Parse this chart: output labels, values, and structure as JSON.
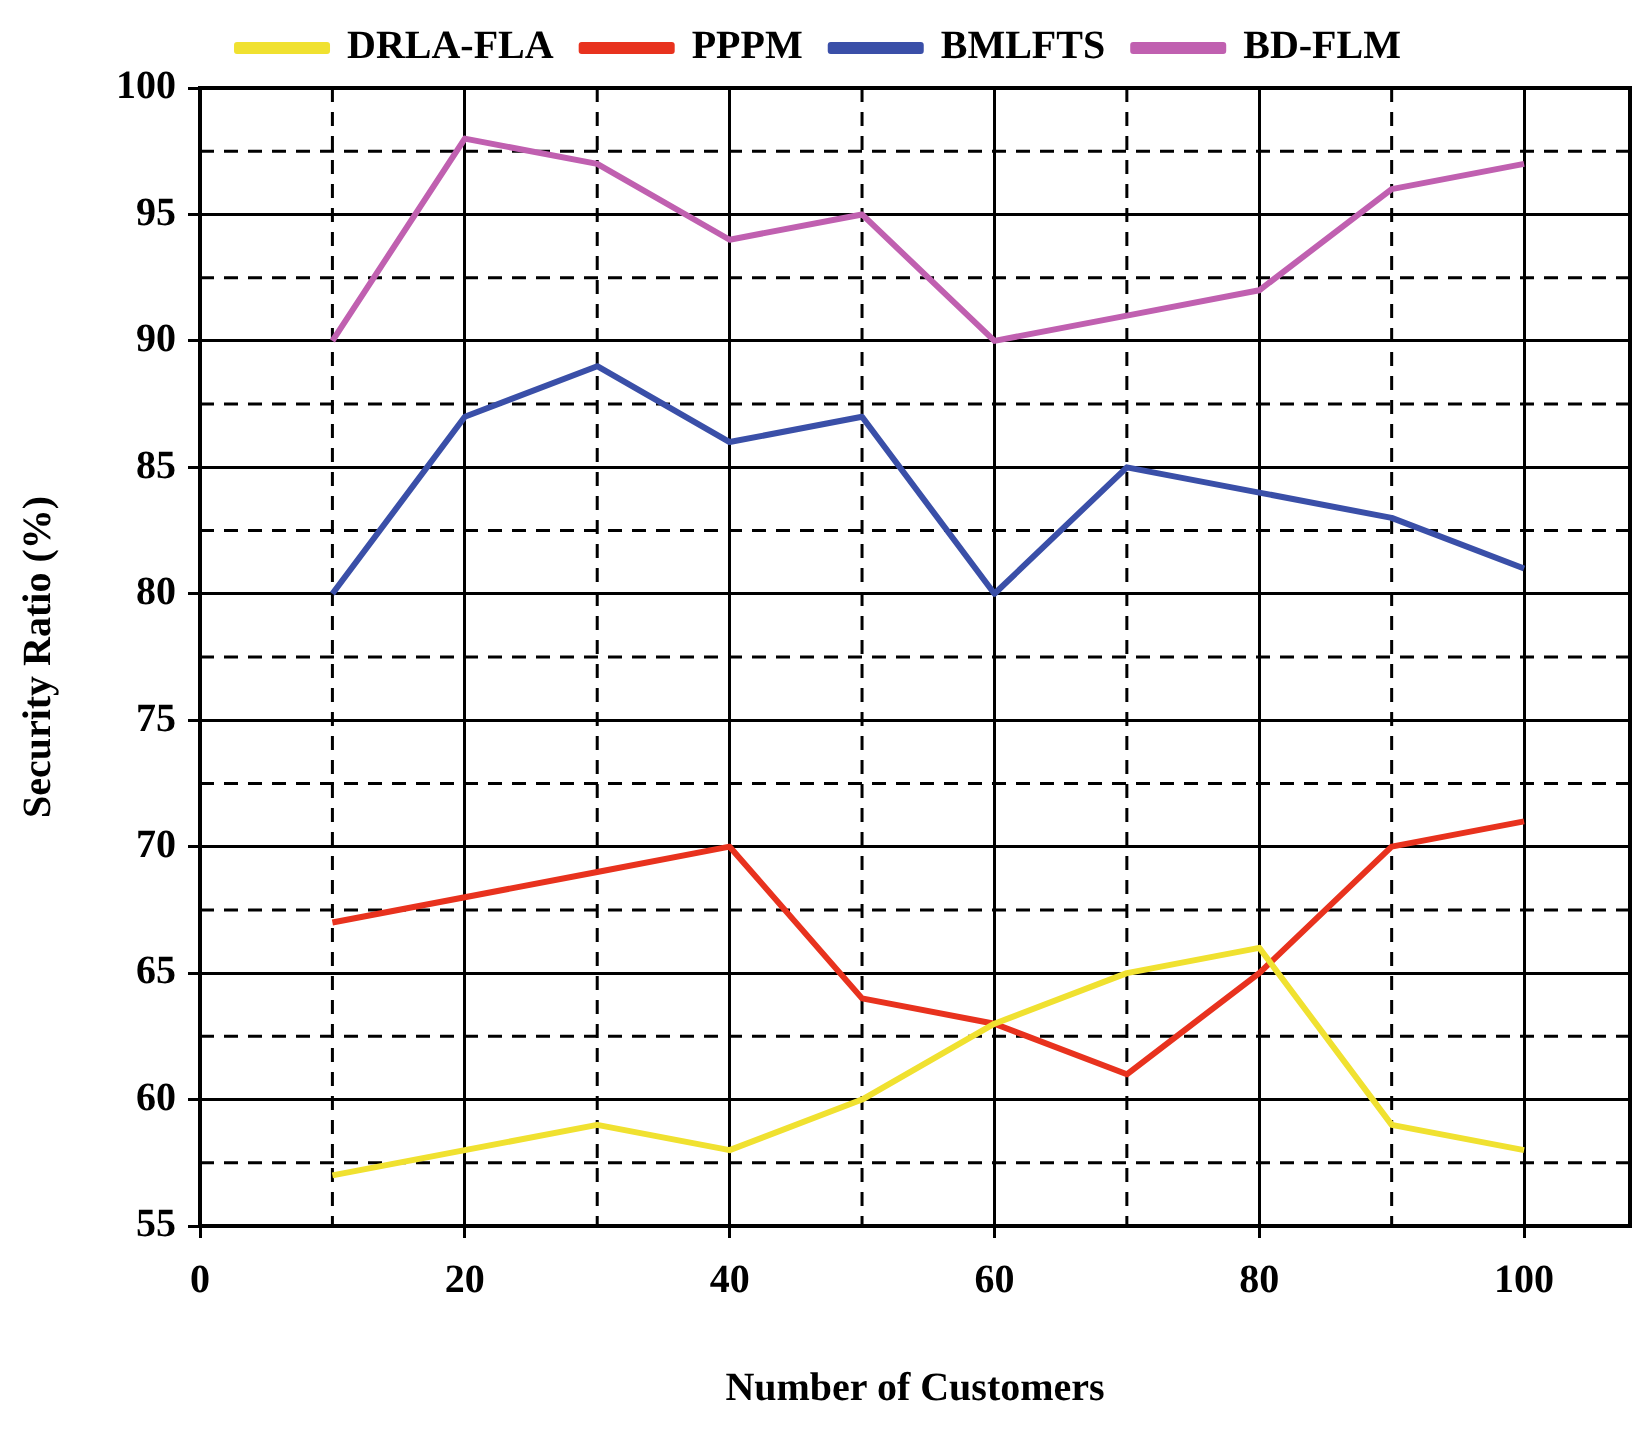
{
  "chart_data": {
    "type": "line",
    "xlabel": "Number of Customers",
    "ylabel": "Security Ratio (%)",
    "x": [
      10,
      20,
      30,
      40,
      50,
      60,
      70,
      80,
      90,
      100
    ],
    "xlim": [
      0,
      108
    ],
    "xticks": [
      0,
      20,
      40,
      60,
      80,
      100
    ],
    "ylim": [
      55,
      100
    ],
    "yticks": [
      55,
      60,
      65,
      70,
      75,
      80,
      85,
      90,
      95,
      100
    ],
    "grid": true,
    "legend": "top",
    "marker": "none",
    "line_style": "solid",
    "series": [
      {
        "name": "DRLA-FLA",
        "color": "#f0e130",
        "values": [
          57,
          58,
          59,
          58,
          60,
          63,
          65,
          66,
          59,
          58
        ]
      },
      {
        "name": "PPPM",
        "color": "#e8321e",
        "values": [
          67,
          68,
          69,
          70,
          64,
          63,
          61,
          65,
          70,
          71
        ]
      },
      {
        "name": "BMLFTS",
        "color": "#3a4fa8",
        "values": [
          80,
          87,
          89,
          86,
          87,
          80,
          85,
          84,
          83,
          81
        ]
      },
      {
        "name": "BD-FLM",
        "color": "#c060b0",
        "values": [
          90,
          98,
          97,
          94,
          95,
          90,
          91,
          92,
          96,
          97
        ]
      }
    ]
  }
}
